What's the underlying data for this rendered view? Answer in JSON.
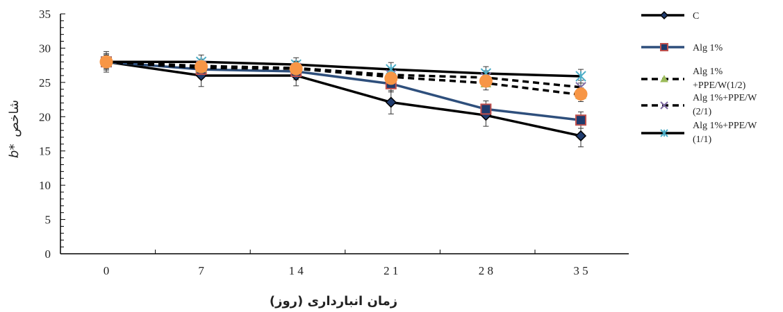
{
  "chart_data": {
    "type": "line",
    "xlabel": "زمان انبارداری (روز)",
    "ylabel": "b* شاخص",
    "ylabel_parts": {
      "italic": "b*",
      "text": "شاخص"
    },
    "x": [
      0,
      7,
      14,
      21,
      28,
      35
    ],
    "x_tick_labels": [
      "0",
      "7",
      "1 4",
      "2 1",
      "2 8",
      "3 5"
    ],
    "ylim": [
      0,
      35
    ],
    "y_ticks": [
      0,
      5,
      10,
      15,
      20,
      25,
      30,
      35
    ],
    "grid": false,
    "legend_position": "right",
    "series": [
      {
        "name": "C",
        "legend_lines": [
          "C"
        ],
        "color": "#000000",
        "line_style": "solid",
        "marker": "diamond",
        "marker_fill": "#1f3b6e",
        "marker_stroke": "#000000",
        "values": [
          28.0,
          26.0,
          26.0,
          22.1,
          20.2,
          17.2
        ],
        "errors": [
          1.5,
          1.6,
          1.5,
          1.7,
          1.6,
          1.6
        ]
      },
      {
        "name": "Alg 1%",
        "legend_lines": [
          "Alg 1%"
        ],
        "color": "#2e4f7c",
        "line_style": "solid",
        "marker": "square",
        "marker_fill": "#1f3b6e",
        "marker_stroke": "#c0504d",
        "values": [
          28.0,
          26.9,
          26.6,
          24.8,
          21.1,
          19.5
        ],
        "errors": [
          1.2,
          1.2,
          1.2,
          1.2,
          1.2,
          1.2
        ]
      },
      {
        "name": "Alg 1% +PPE/W(1/2)",
        "legend_lines": [
          "Alg 1%",
          "+PPE/W(1/2)"
        ],
        "color": "#000000",
        "line_style": "dash",
        "marker": "triangle",
        "marker_fill": "#9bbb59",
        "marker_stroke": "#9bbb59",
        "values": [
          28.0,
          27.1,
          27.0,
          25.8,
          24.9,
          23.2
        ],
        "errors": [
          1.0,
          1.0,
          1.0,
          1.0,
          1.0,
          1.0
        ]
      },
      {
        "name": "Alg 1%+PPE/W (2/1)",
        "legend_lines": [
          "Alg 1%+PPE/W",
          "(2/1)"
        ],
        "color": "#000000",
        "line_style": "dash",
        "marker": "x",
        "marker_fill": "#7f6aa3",
        "marker_stroke": "#7f6aa3",
        "values": [
          28.0,
          27.4,
          27.1,
          26.1,
          25.7,
          24.3
        ],
        "errors": [
          1.0,
          1.0,
          1.0,
          1.0,
          1.0,
          1.0
        ]
      },
      {
        "name": "Alg 1%+PPE/W (1/1)",
        "legend_lines": [
          "Alg 1%+PPE/W",
          "(1/1)"
        ],
        "color": "#000000",
        "line_style": "solid",
        "marker": "asterisk",
        "marker_fill": "#4bacc6",
        "marker_stroke": "#4bacc6",
        "values": [
          28.0,
          28.0,
          27.6,
          26.9,
          26.3,
          25.9
        ],
        "errors": [
          1.0,
          1.0,
          1.0,
          1.0,
          1.0,
          1.0
        ]
      }
    ],
    "overlay_marker": {
      "marker": "circle",
      "color": "#f79646",
      "note_values": [
        28.0,
        27.3,
        27.0,
        25.6,
        25.2,
        23.3
      ]
    }
  }
}
